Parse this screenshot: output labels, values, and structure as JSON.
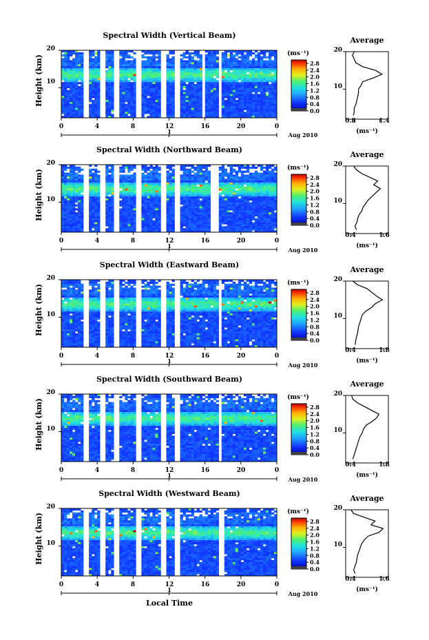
{
  "figure": {
    "xlabel": "Local Time",
    "date_label": "Aug 2010",
    "day_label": "1",
    "ylabel": "Height (km)",
    "colorbar_unit": "(ms⁻¹)",
    "colorbar_ticks": [
      "2.8",
      "2.4",
      "2.0",
      "1.6",
      "1.2",
      "0.8",
      "0.4",
      "0.0"
    ],
    "average_title": "Average",
    "average_unit": "(ms⁻¹)"
  },
  "chart_data": [
    {
      "type": "heatmap",
      "title": "Spectral Width (Vertical Beam)",
      "xlabel": "Local Time",
      "ylabel": "Height (km)",
      "x_ticks": [
        "0",
        "4",
        "8",
        "12",
        "16",
        "20",
        "0"
      ],
      "y_ticks": [
        "20",
        "10"
      ],
      "xlim": [
        0,
        24
      ],
      "ylim": [
        2,
        20
      ],
      "colorbar": {
        "min": 0.0,
        "max": 3.0
      },
      "data_gaps_hours": [
        [
          2.6,
          3.1
        ],
        [
          4.3,
          4.8
        ],
        [
          6.0,
          6.5
        ],
        [
          8.3,
          9.0
        ],
        [
          11.2,
          11.8
        ],
        [
          12.6,
          13.2
        ],
        [
          15.6,
          15.9
        ],
        [
          17.6,
          17.9
        ]
      ],
      "average": {
        "type": "line",
        "title": "Average",
        "xlabel": "(ms⁻¹)",
        "ylabel": "Height (km)",
        "x_ticks": [
          "0.8",
          "1.4"
        ],
        "y_ticks": [
          "20",
          "10"
        ],
        "xlim": [
          0.6,
          1.6
        ],
        "ylim": [
          2,
          20
        ],
        "heights": [
          3,
          4,
          5,
          6,
          7,
          8,
          9,
          10,
          11,
          12,
          13,
          14,
          15,
          16,
          17,
          18,
          19,
          20
        ],
        "values": [
          0.78,
          0.8,
          0.8,
          0.84,
          0.86,
          0.88,
          0.9,
          0.9,
          0.96,
          1.0,
          1.25,
          1.45,
          1.3,
          1.0,
          0.84,
          0.8,
          0.76,
          0.8
        ]
      }
    },
    {
      "type": "heatmap",
      "title": "Spectral Width (Northward Beam)",
      "xlabel": "Local Time",
      "ylabel": "Height (km)",
      "x_ticks": [
        "0",
        "4",
        "8",
        "12",
        "16",
        "20",
        "0"
      ],
      "y_ticks": [
        "20",
        "10"
      ],
      "xlim": [
        0,
        24
      ],
      "ylim": [
        2,
        20
      ],
      "colorbar": {
        "min": 0.0,
        "max": 3.0
      },
      "data_gaps_hours": [
        [
          2.6,
          3.1
        ],
        [
          4.3,
          4.8
        ],
        [
          6.0,
          6.5
        ],
        [
          8.3,
          9.0
        ],
        [
          11.2,
          11.8
        ],
        [
          12.6,
          13.2
        ],
        [
          16.5,
          17.5
        ]
      ],
      "average": {
        "type": "line",
        "title": "Average",
        "xlabel": "(ms⁻¹)",
        "ylabel": "Height (km)",
        "x_ticks": [
          "0.4",
          "1.6"
        ],
        "y_ticks": [
          "20",
          "10"
        ],
        "xlim": [
          0.2,
          1.8
        ],
        "ylim": [
          2,
          20
        ],
        "heights": [
          3,
          4,
          5,
          6,
          7,
          8,
          9,
          10,
          11,
          12,
          13,
          14,
          15,
          16,
          17,
          18,
          19,
          20
        ],
        "values": [
          0.6,
          0.55,
          0.62,
          0.65,
          0.7,
          0.8,
          0.85,
          0.95,
          1.05,
          1.2,
          1.35,
          1.5,
          1.25,
          1.4,
          1.1,
          0.8,
          0.6,
          0.5
        ]
      }
    },
    {
      "type": "heatmap",
      "title": "Spectral Width (Eastward Beam)",
      "xlabel": "Local Time",
      "ylabel": "Height (km)",
      "x_ticks": [
        "0",
        "4",
        "8",
        "12",
        "16",
        "20",
        "0"
      ],
      "y_ticks": [
        "20",
        "10"
      ],
      "xlim": [
        0,
        24
      ],
      "ylim": [
        2,
        20
      ],
      "colorbar": {
        "min": 0.0,
        "max": 3.0
      },
      "data_gaps_hours": [
        [
          2.6,
          3.1
        ],
        [
          4.3,
          4.8
        ],
        [
          6.0,
          6.5
        ],
        [
          8.3,
          9.0
        ],
        [
          11.2,
          11.8
        ],
        [
          12.6,
          13.2
        ],
        [
          17.6,
          17.9
        ]
      ],
      "average": {
        "type": "line",
        "title": "Average",
        "xlabel": "(ms⁻¹)",
        "ylabel": "Height (km)",
        "x_ticks": [
          "0.4",
          "1.8"
        ],
        "y_ticks": [
          "20",
          "10"
        ],
        "xlim": [
          0.2,
          2.0
        ],
        "ylim": [
          2,
          20
        ],
        "heights": [
          3,
          4,
          5,
          6,
          7,
          8,
          9,
          10,
          11,
          12,
          13,
          14,
          15,
          16,
          17,
          18,
          19,
          20
        ],
        "values": [
          0.6,
          0.62,
          0.65,
          0.7,
          0.72,
          0.75,
          0.8,
          0.85,
          0.9,
          1.05,
          1.3,
          1.45,
          1.75,
          1.5,
          1.3,
          1.1,
          0.7,
          0.5
        ]
      }
    },
    {
      "type": "heatmap",
      "title": "Spectral Width (Southward Beam)",
      "xlabel": "Local Time",
      "ylabel": "Height (km)",
      "x_ticks": [
        "0",
        "4",
        "8",
        "12",
        "16",
        "20",
        "0"
      ],
      "y_ticks": [
        "20",
        "10"
      ],
      "xlim": [
        0,
        24
      ],
      "ylim": [
        2,
        20
      ],
      "colorbar": {
        "min": 0.0,
        "max": 3.0
      },
      "data_gaps_hours": [
        [
          2.6,
          3.1
        ],
        [
          4.3,
          4.8
        ],
        [
          6.0,
          6.5
        ],
        [
          8.3,
          9.0
        ],
        [
          11.2,
          11.8
        ],
        [
          12.6,
          13.2
        ],
        [
          17.6,
          17.9
        ]
      ],
      "average": {
        "type": "line",
        "title": "Average",
        "xlabel": "(ms⁻¹)",
        "ylabel": "Height (km)",
        "x_ticks": [
          "0.4",
          "1.8"
        ],
        "y_ticks": [
          "20",
          "10"
        ],
        "xlim": [
          0.2,
          2.0
        ],
        "ylim": [
          2,
          20
        ],
        "heights": [
          3,
          4,
          5,
          6,
          7,
          8,
          9,
          10,
          11,
          12,
          13,
          14,
          15,
          16,
          17,
          18,
          19,
          20
        ],
        "values": [
          0.5,
          0.55,
          0.6,
          0.65,
          0.7,
          0.75,
          0.8,
          0.9,
          0.95,
          1.05,
          1.3,
          1.5,
          1.6,
          1.3,
          1.0,
          0.7,
          0.5,
          0.45
        ]
      }
    },
    {
      "type": "heatmap",
      "title": "Spectral Width (Westward Beam)",
      "xlabel": "Local Time",
      "ylabel": "Height (km)",
      "x_ticks": [
        "0",
        "4",
        "8",
        "12",
        "16",
        "20",
        "0"
      ],
      "y_ticks": [
        "20",
        "10"
      ],
      "xlim": [
        0,
        24
      ],
      "ylim": [
        2,
        20
      ],
      "colorbar": {
        "min": 0.0,
        "max": 3.0
      },
      "data_gaps_hours": [
        [
          2.6,
          3.1
        ],
        [
          4.3,
          4.8
        ],
        [
          6.0,
          6.5
        ],
        [
          8.3,
          9.0
        ],
        [
          11.2,
          11.8
        ],
        [
          12.6,
          13.2
        ],
        [
          17.6,
          18.0
        ]
      ],
      "average": {
        "type": "line",
        "title": "Average",
        "xlabel": "(ms⁻¹)",
        "ylabel": "Height (km)",
        "x_ticks": [
          "0.4",
          "1.6"
        ],
        "y_ticks": [
          "20",
          "10"
        ],
        "xlim": [
          0.2,
          1.8
        ],
        "ylim": [
          2,
          20
        ],
        "heights": [
          3,
          4,
          5,
          6,
          7,
          8,
          9,
          10,
          11,
          12,
          13,
          14,
          15,
          16,
          17,
          18,
          19,
          20
        ],
        "values": [
          0.55,
          0.5,
          0.55,
          0.6,
          0.62,
          0.65,
          0.7,
          0.75,
          0.8,
          0.9,
          1.05,
          1.45,
          1.6,
          1.15,
          1.3,
          0.9,
          0.5,
          0.4
        ]
      }
    }
  ]
}
